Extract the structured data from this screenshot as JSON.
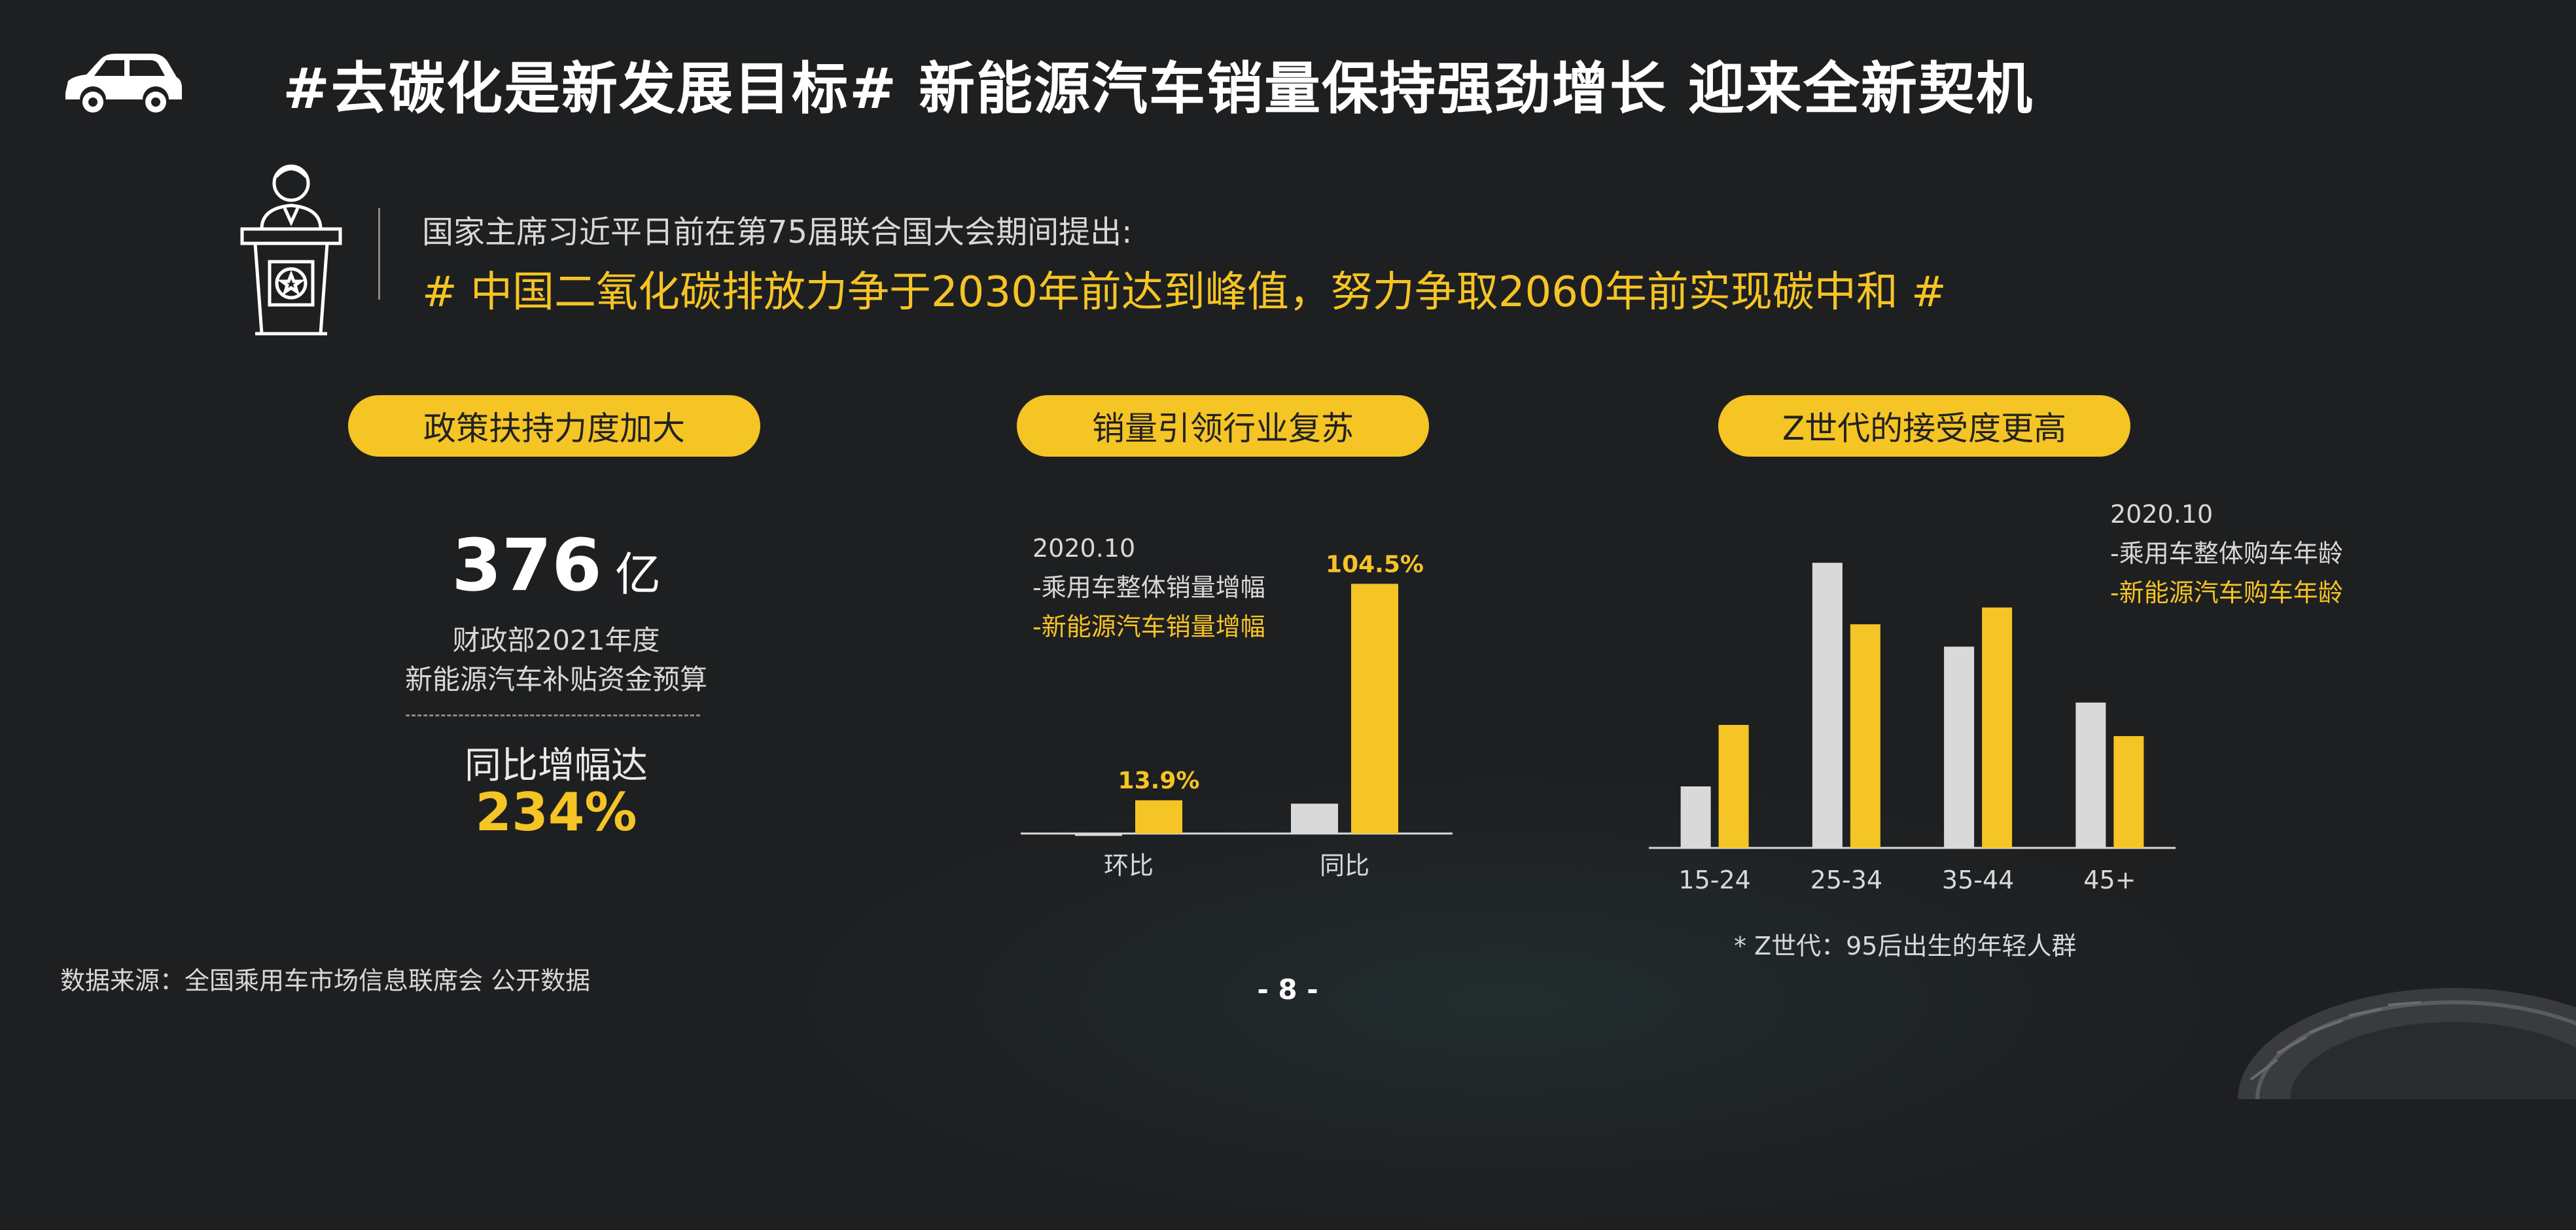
{
  "header": {
    "title": "#去碳化是新发展目标# 新能源汽车销量保持强劲增长 迎来全新契机"
  },
  "quote": {
    "intro": "国家主席习近平日前在第75届联合国大会期间提出:",
    "main": "# 中国二氧化碳排放力争于2030年前达到峰值，努力争取2060年前实现碳中和 #"
  },
  "sections": [
    {
      "label": "政策扶持力度加大"
    },
    {
      "label": "销量引领行业复苏"
    },
    {
      "label": "Z世代的接受度更高"
    }
  ],
  "policy": {
    "amount": "376",
    "unit": "亿",
    "desc_line1": "财政部2021年度",
    "desc_line2": "新能源汽车补贴资金预算",
    "growth_label": "同比增幅达",
    "growth_value": "234%"
  },
  "sales_legend": {
    "date": "2020.10",
    "series_a": "-乘用车整体销量增幅",
    "series_b": "-新能源汽车销量增幅"
  },
  "age_legend": {
    "date": "2020.10",
    "series_a": "-乘用车整体购车年龄",
    "series_b": "-新能源汽车购车年龄"
  },
  "footnote": "* Z世代：95后出生的年轻人群",
  "source": "数据来源：全国乘用车市场信息联席会 公开数据",
  "page_number": "- 8 -",
  "colors": {
    "accent": "#f5c425",
    "secondary": "#d9d9d9",
    "background": "#1e1f21"
  },
  "icons": [
    "car-icon",
    "speaker-podium-icon",
    "tire-icon"
  ],
  "chart_data": [
    {
      "type": "bar",
      "categories": [
        "环比",
        "同比"
      ],
      "series": [
        {
          "name": "-乘用车整体销量增幅",
          "values": [
            -1.0,
            12.5
          ],
          "color": "#d9d9d9"
        },
        {
          "name": "-新能源汽车销量增幅",
          "values": [
            13.9,
            104.5
          ],
          "color": "#f5c425"
        }
      ],
      "data_labels": [
        "13.9%",
        "104.5%"
      ],
      "ylim": [
        -3,
        115
      ],
      "legend_position": "top-left"
    },
    {
      "type": "bar",
      "categories": [
        "15-24",
        "25-34",
        "35-44",
        "45+"
      ],
      "series": [
        {
          "name": "-乘用车整体购车年龄",
          "values": [
            11,
            51,
            36,
            26
          ],
          "color": "#d9d9d9"
        },
        {
          "name": "-新能源汽车购车年龄",
          "values": [
            22,
            40,
            43,
            20
          ],
          "color": "#f5c425"
        }
      ],
      "ylim": [
        0,
        55
      ],
      "legend_position": "top-right"
    }
  ]
}
